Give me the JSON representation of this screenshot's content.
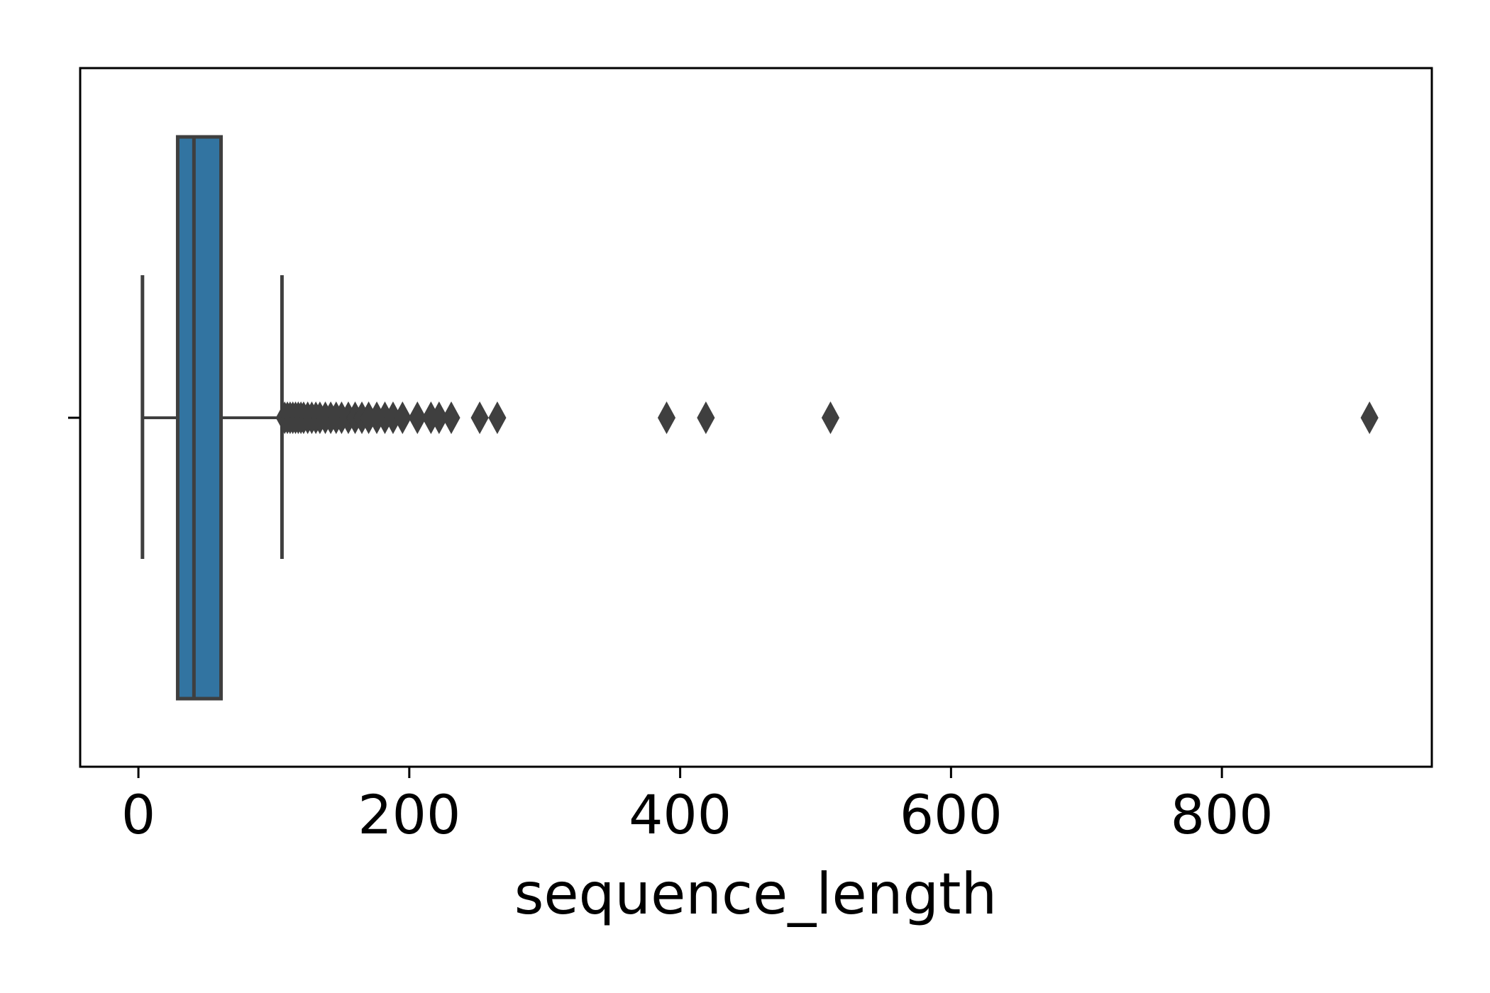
{
  "chart_data": {
    "type": "boxplot",
    "orientation": "horizontal",
    "title": "",
    "xlabel": "sequence_length",
    "ylabel": "",
    "xlim": [
      -43,
      955
    ],
    "xticks": [
      0,
      200,
      400,
      600,
      800
    ],
    "xtick_labels": [
      "0",
      "200",
      "400",
      "600",
      "800"
    ],
    "grid": false,
    "box": {
      "whisker_low": 3,
      "q1": 29,
      "median": 41,
      "q3": 61,
      "whisker_high": 106,
      "fill_color": "#3274a1",
      "line_color": "#3f3f3f"
    },
    "outliers": [
      108,
      110,
      112,
      114,
      116,
      118,
      120,
      122,
      125,
      128,
      131,
      134,
      138,
      142,
      146,
      150,
      155,
      160,
      165,
      170,
      176,
      182,
      188,
      195,
      206,
      216,
      222,
      231,
      252,
      265,
      390,
      419,
      511,
      909
    ]
  }
}
